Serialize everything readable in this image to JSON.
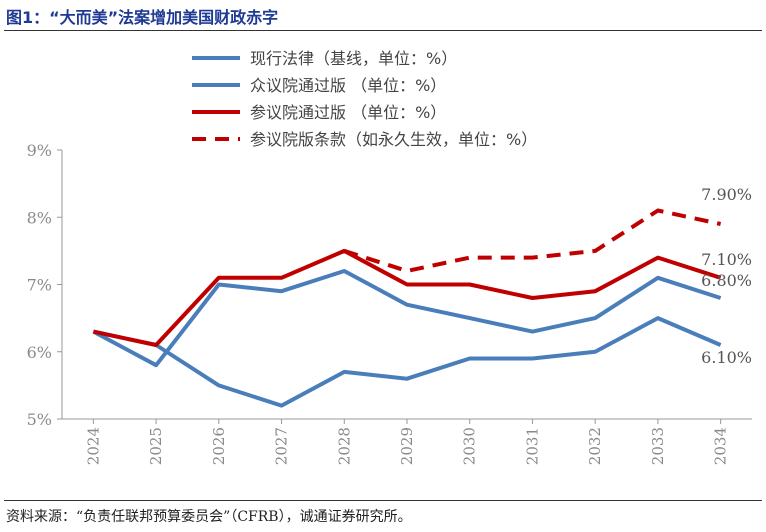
{
  "figure_title": "图1：“大而美”法案增加美国财政赤字",
  "source_note": "资料来源：“负责任联邦预算委员会”（CFRB），诚通证券研究所。",
  "chart_data": {
    "type": "line",
    "title": "",
    "xlabel": "",
    "ylabel": "",
    "x": [
      "2024",
      "2025",
      "2026",
      "2027",
      "2028",
      "2029",
      "2030",
      "2031",
      "2032",
      "2033",
      "2034"
    ],
    "ylim": [
      5,
      9
    ],
    "yticks": [
      "5%",
      "6%",
      "7%",
      "8%",
      "9%"
    ],
    "grid": false,
    "legend_position": "top",
    "series": [
      {
        "name": "现行法律（基线，单位：%）",
        "color": "#4a7ebb",
        "dash": false,
        "values": [
          6.3,
          6.1,
          5.5,
          5.2,
          5.7,
          5.6,
          5.9,
          5.9,
          6.0,
          6.5,
          6.1
        ]
      },
      {
        "name": "众议院通过版 （单位：%）",
        "color": "#4a7ebb",
        "dash": false,
        "values": [
          6.3,
          5.8,
          7.0,
          6.9,
          7.2,
          6.7,
          6.5,
          6.3,
          6.5,
          7.1,
          6.8
        ]
      },
      {
        "name": "参议院通过版 （单位：%）",
        "color": "#c00000",
        "dash": false,
        "values": [
          6.3,
          6.1,
          7.1,
          7.1,
          7.5,
          7.0,
          7.0,
          6.8,
          6.9,
          7.4,
          7.1
        ]
      },
      {
        "name": "参议院版条款（如永久生效，单位：%）",
        "color": "#c00000",
        "dash": true,
        "values": [
          null,
          null,
          null,
          null,
          7.5,
          7.2,
          7.4,
          7.4,
          7.5,
          8.1,
          7.9
        ]
      }
    ],
    "end_labels": [
      "7.90%",
      "7.10%",
      "6.80%",
      "6.10%"
    ]
  }
}
